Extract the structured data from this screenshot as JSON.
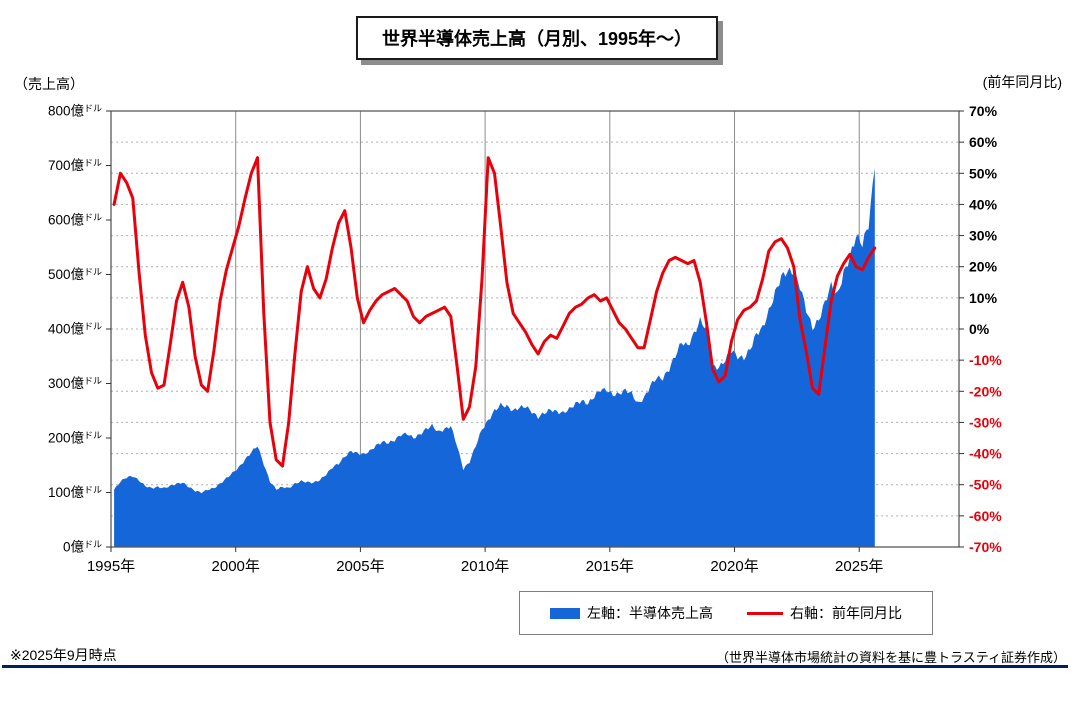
{
  "title": "世界半導体売上高（月別、1995年～）",
  "unit_left": "（売上高）",
  "unit_right": "(前年同月比)",
  "legend": {
    "sales_label": "左軸：半導体売上高",
    "yoy_label": "右軸：前年同月比"
  },
  "footnote_left": "※2025年9月時点",
  "footnote_right": "（世界半導体市場統計の資料を基に豊トラスティ証券作成）",
  "colors": {
    "sales": "#1566d9",
    "yoy": "#e8000b",
    "negative_tick": "#e8000b",
    "positive_tick": "#000000",
    "rule": "#002060",
    "grid_h": "#b0b0b0",
    "grid_v": "#8c8c8c",
    "frame": "#595959"
  },
  "chart_data": {
    "type": "combo",
    "x_start": 1995.125,
    "x_step": 0.25,
    "x_axis": {
      "min": 1995,
      "max": 2029,
      "tick_values": [
        1995,
        2000,
        2005,
        2010,
        2015,
        2020,
        2025
      ],
      "tick_labels": [
        "1995年",
        "2000年",
        "2005年",
        "2010年",
        "2015年",
        "2020年",
        "2025年"
      ]
    },
    "y_left": {
      "min": 0,
      "max": 800,
      "step": 100,
      "labels": [
        "0億ドル",
        "100億ドル",
        "200億ドル",
        "300億ドル",
        "400億ドル",
        "500億ドル",
        "600億ドル",
        "700億ドル",
        "800億ドル"
      ]
    },
    "y_right": {
      "min": -70,
      "max": 70,
      "step": 10,
      "labels": [
        "-70%",
        "-60%",
        "-50%",
        "-40%",
        "-30%",
        "-20%",
        "-10%",
        "0%",
        "10%",
        "20%",
        "30%",
        "40%",
        "50%",
        "60%",
        "70%"
      ]
    },
    "series": [
      {
        "name": "左軸：半導体売上高",
        "type": "area",
        "axis": "left",
        "color": "#1566d9",
        "unit": "億ドル",
        "values": [
          105,
          120,
          128,
          130,
          122,
          112,
          108,
          110,
          108,
          112,
          116,
          118,
          110,
          103,
          100,
          105,
          108,
          116,
          126,
          136,
          146,
          160,
          174,
          186,
          152,
          120,
          106,
          110,
          108,
          116,
          121,
          119,
          118,
          123,
          133,
          146,
          153,
          166,
          176,
          172,
          170,
          176,
          186,
          193,
          191,
          196,
          206,
          208,
          200,
          206,
          216,
          223,
          211,
          216,
          222,
          186,
          143,
          156,
          186,
          216,
          232,
          250,
          261,
          258,
          250,
          256,
          258,
          248,
          238,
          246,
          252,
          248,
          246,
          253,
          263,
          268,
          263,
          276,
          289,
          288,
          279,
          281,
          288,
          282,
          263,
          273,
          296,
          311,
          309,
          326,
          351,
          376,
          369,
          391,
          416,
          400,
          331,
          329,
          343,
          361,
          349,
          346,
          363,
          391,
          402,
          432,
          466,
          496,
          506,
          504,
          478,
          436,
          401,
          416,
          449,
          481,
          462,
          502,
          532,
          571,
          556,
          592,
          695
        ]
      },
      {
        "name": "右軸：前年同月比",
        "type": "line",
        "axis": "right",
        "color": "#e8000b",
        "unit": "%",
        "values": [
          40,
          50,
          47,
          42,
          18,
          -2,
          -14,
          -19,
          -18,
          -5,
          9,
          15,
          7,
          -9,
          -18,
          -20,
          -7,
          9,
          19,
          26,
          33,
          42,
          50,
          55,
          5,
          -30,
          -42,
          -44,
          -30,
          -8,
          12,
          20,
          13,
          10,
          16,
          26,
          34,
          38,
          26,
          10,
          2,
          6,
          9,
          11,
          12,
          13,
          11,
          9,
          4,
          2,
          4,
          5,
          6,
          7,
          4,
          -12,
          -29,
          -25,
          -12,
          16,
          55,
          50,
          33,
          15,
          5,
          2,
          -1,
          -5,
          -8,
          -4,
          -2,
          -3,
          1,
          5,
          7,
          8,
          10,
          11,
          9,
          10,
          6,
          2,
          0,
          -3,
          -6,
          -6,
          3,
          12,
          18,
          22,
          23,
          22,
          21,
          22,
          15,
          2,
          -13,
          -17,
          -15,
          -4,
          3,
          6,
          7,
          9,
          16,
          25,
          28,
          29,
          26,
          20,
          3,
          -7,
          -19,
          -21,
          -6,
          9,
          17,
          21,
          24,
          20,
          19,
          23,
          26
        ]
      }
    ]
  }
}
